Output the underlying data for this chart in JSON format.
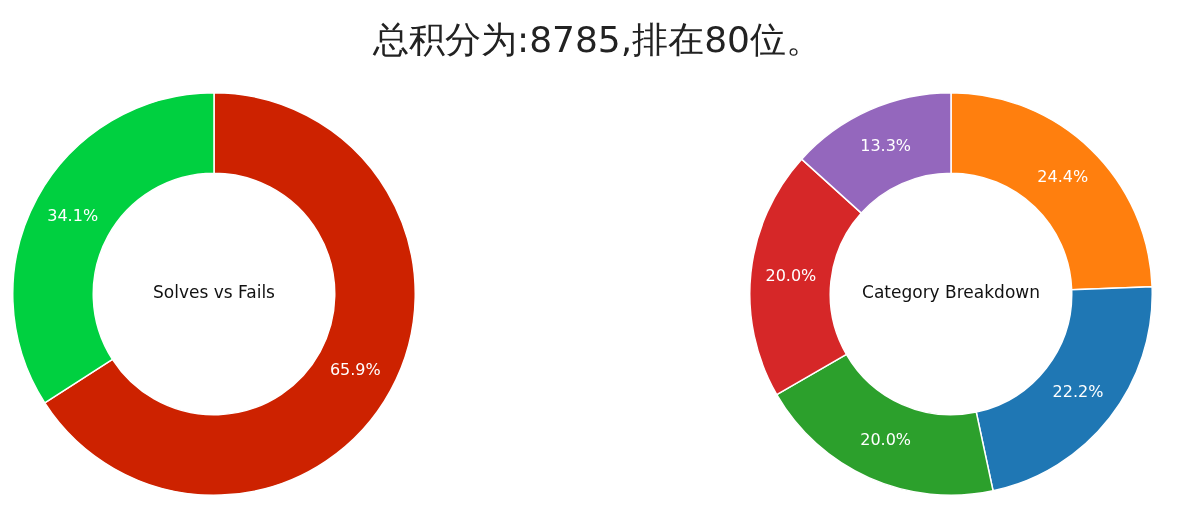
{
  "chart_data": [
    {
      "type": "donut",
      "title": "总积分为:8785,排在80位。",
      "subtitle": "Solves vs Fails",
      "categories": [
        null,
        null
      ],
      "values": [
        65.9,
        34.1
      ],
      "colors": [
        "#cd2200",
        "#00d040"
      ],
      "value_labels": [
        "65.9%",
        "34.1%"
      ],
      "legend": false
    },
    {
      "type": "donut",
      "subtitle": "Category Breakdown",
      "categories": [
        null,
        null,
        null,
        null,
        null
      ],
      "values": [
        24.4,
        22.2,
        20.0,
        20.0,
        13.3
      ],
      "colors": [
        "#ff7f0e",
        "#1f77b4",
        "#2ca02c",
        "#d62728",
        "#9467bd"
      ],
      "value_labels": [
        "24.4%",
        "22.2%",
        "20.0%",
        "20.0%",
        "13.3%"
      ],
      "legend": false
    }
  ]
}
